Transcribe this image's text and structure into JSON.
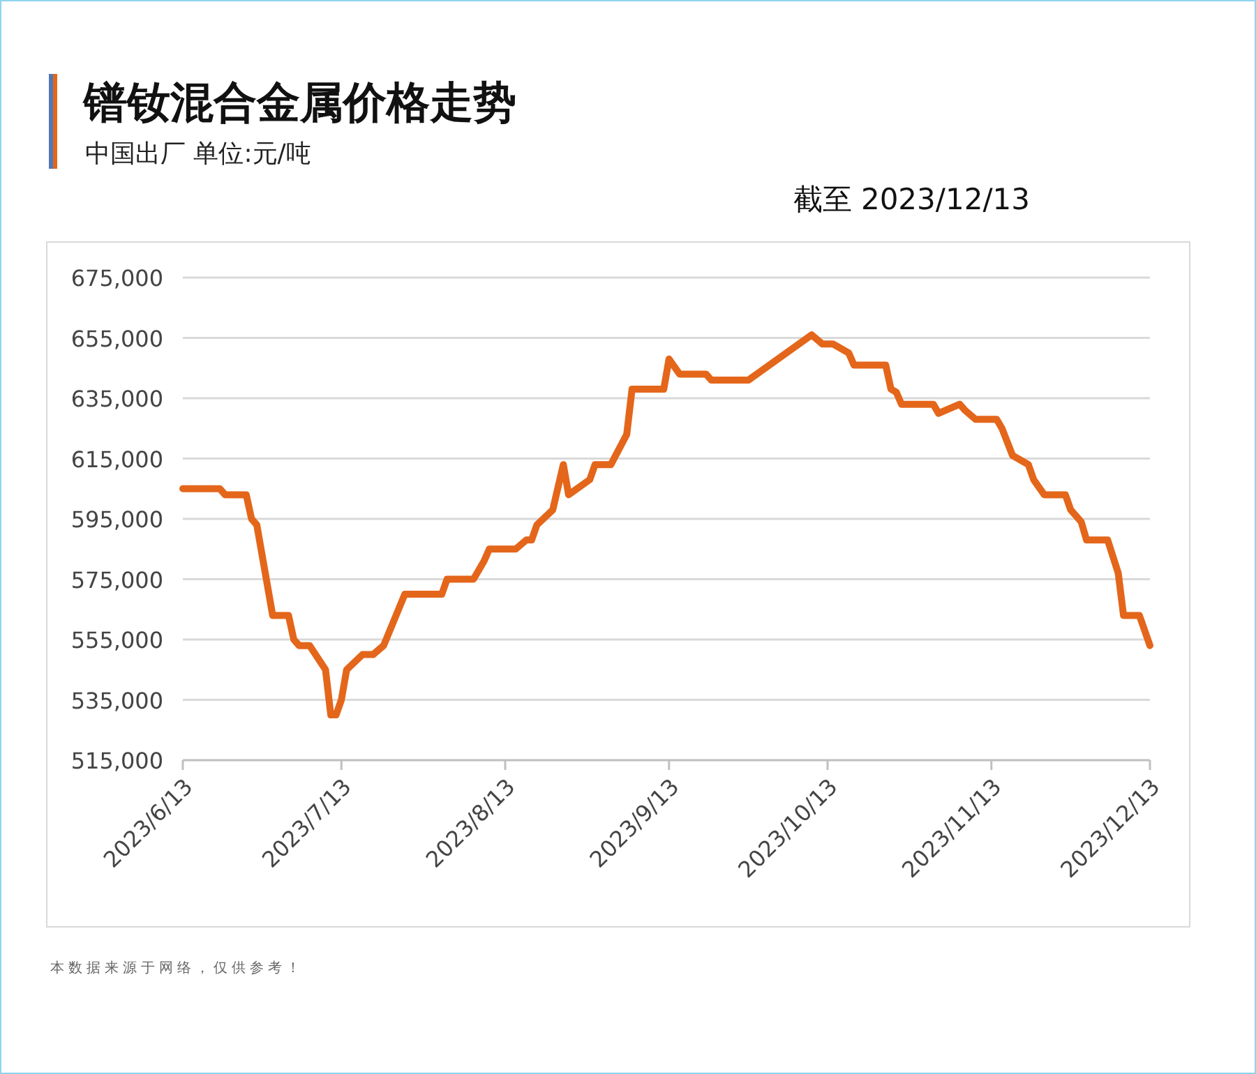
{
  "chart_data": {
    "type": "line",
    "title": "镨钕混合金属价格走势",
    "subtitle": "中国出厂  单位:元/吨",
    "annotations": [
      "截至 2023/12/13",
      "本数据来源于网络，仅供参考！"
    ],
    "x": [
      "2023-06-13",
      "2023-06-20",
      "2023-06-21",
      "2023-06-25",
      "2023-06-26",
      "2023-06-27",
      "2023-06-30",
      "2023-07-03",
      "2023-07-04",
      "2023-07-05",
      "2023-07-07",
      "2023-07-10",
      "2023-07-11",
      "2023-07-12",
      "2023-07-13",
      "2023-07-14",
      "2023-07-17",
      "2023-07-19",
      "2023-07-21",
      "2023-07-25",
      "2023-08-01",
      "2023-08-02",
      "2023-08-07",
      "2023-08-09",
      "2023-08-10",
      "2023-08-15",
      "2023-08-17",
      "2023-08-18",
      "2023-08-19",
      "2023-08-22",
      "2023-08-24",
      "2023-08-25",
      "2023-08-29",
      "2023-08-30",
      "2023-09-02",
      "2023-09-05",
      "2023-09-06",
      "2023-09-12",
      "2023-09-13",
      "2023-09-15",
      "2023-09-20",
      "2023-09-21",
      "2023-09-28",
      "2023-10-10",
      "2023-10-12",
      "2023-10-14",
      "2023-10-17",
      "2023-10-18",
      "2023-10-24",
      "2023-10-25",
      "2023-10-26",
      "2023-10-27",
      "2023-11-02",
      "2023-11-03",
      "2023-11-07",
      "2023-11-08",
      "2023-11-10",
      "2023-11-14",
      "2023-11-15",
      "2023-11-17",
      "2023-11-20",
      "2023-11-21",
      "2023-11-23",
      "2023-11-27",
      "2023-11-28",
      "2023-11-30",
      "2023-12-01",
      "2023-12-05",
      "2023-12-07",
      "2023-12-08",
      "2023-12-11",
      "2023-12-13"
    ],
    "series": [
      {
        "color": "#e4661b",
        "values": [
          605000,
          605000,
          603000,
          603000,
          595000,
          593000,
          563000,
          563000,
          555000,
          553000,
          553000,
          545000,
          530000,
          530000,
          535000,
          545000,
          550000,
          550000,
          553000,
          570000,
          570000,
          575000,
          575000,
          581000,
          585000,
          585000,
          588000,
          588000,
          593000,
          598000,
          613000,
          603000,
          608000,
          613000,
          613000,
          623000,
          638000,
          638000,
          648000,
          643000,
          643000,
          641000,
          641000,
          656000,
          653000,
          653000,
          650000,
          646000,
          646000,
          638000,
          637000,
          633000,
          633000,
          630000,
          633000,
          631000,
          628000,
          628000,
          625000,
          616000,
          613000,
          608000,
          603000,
          603000,
          598000,
          594000,
          588000,
          588000,
          577000,
          563000,
          563000,
          553000
        ]
      }
    ],
    "xlim": [
      "2023-06-13",
      "2023-12-13"
    ],
    "xticks": [
      {
        "value": "2023-06-13",
        "label": "2023/6/13"
      },
      {
        "value": "2023-07-13",
        "label": "2023/7/13"
      },
      {
        "value": "2023-08-13",
        "label": "2023/8/13"
      },
      {
        "value": "2023-09-13",
        "label": "2023/9/13"
      },
      {
        "value": "2023-10-13",
        "label": "2023/10/13"
      },
      {
        "value": "2023-11-13",
        "label": "2023/11/13"
      },
      {
        "value": "2023-12-13",
        "label": "2023/12/13"
      }
    ],
    "ylim": [
      515000,
      675000
    ],
    "yticks": [
      {
        "value": 515000,
        "label": "515,000"
      },
      {
        "value": 535000,
        "label": "535,000"
      },
      {
        "value": 555000,
        "label": "555,000"
      },
      {
        "value": 575000,
        "label": "575,000"
      },
      {
        "value": 595000,
        "label": "595,000"
      },
      {
        "value": 615000,
        "label": "615,000"
      },
      {
        "value": 635000,
        "label": "635,000"
      },
      {
        "value": 655000,
        "label": "655,000"
      },
      {
        "value": 675000,
        "label": "675,000"
      }
    ],
    "grid": "y",
    "marker": "none",
    "line_style": "solid"
  }
}
